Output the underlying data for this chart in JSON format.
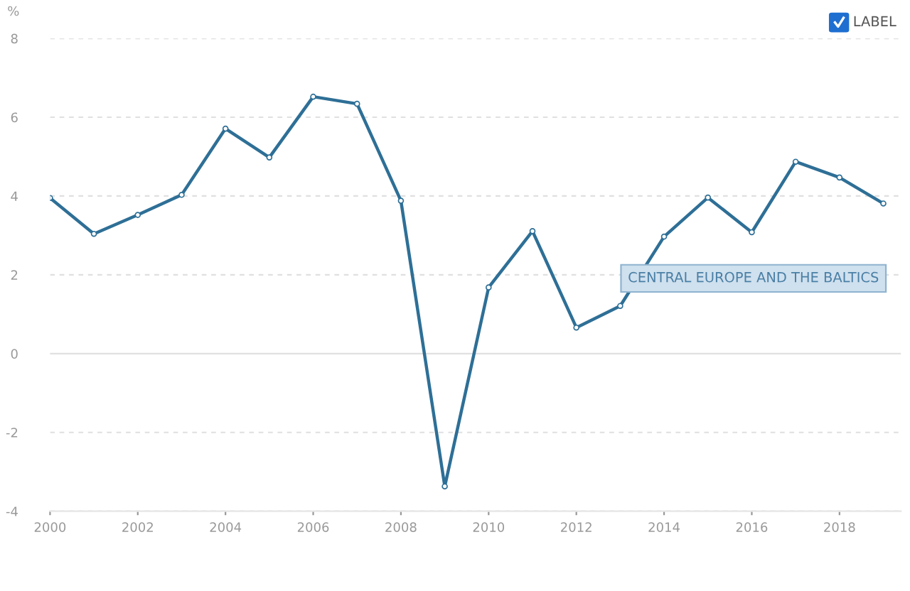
{
  "chart_data": {
    "type": "line",
    "ylabel": "%",
    "annotations": [
      "LABEL"
    ],
    "x": [
      2000,
      2001,
      2002,
      2003,
      2004,
      2005,
      2006,
      2007,
      2008,
      2009,
      2010,
      2011,
      2012,
      2013,
      2014,
      2015,
      2016,
      2017,
      2018,
      2019
    ],
    "series": [
      {
        "name": "CENTRAL EUROPE AND THE BALTICS",
        "color": "#2e6f96",
        "values": [
          3.95,
          3.04,
          3.52,
          4.03,
          5.71,
          4.98,
          6.52,
          6.34,
          3.88,
          -3.37,
          1.68,
          3.11,
          0.66,
          1.21,
          2.97,
          3.96,
          3.08,
          4.87,
          4.47,
          3.81
        ]
      }
    ],
    "xlim": [
      2000,
      2019.4
    ],
    "xticks": [
      2000,
      2002,
      2004,
      2006,
      2008,
      2010,
      2012,
      2014,
      2016,
      2018
    ],
    "ylim": [
      -4,
      8
    ],
    "yticks": [
      -4,
      -2,
      0,
      2,
      4,
      6,
      8
    ],
    "grid": "y",
    "marker": "circle",
    "line_style": "solid",
    "legend": false
  }
}
